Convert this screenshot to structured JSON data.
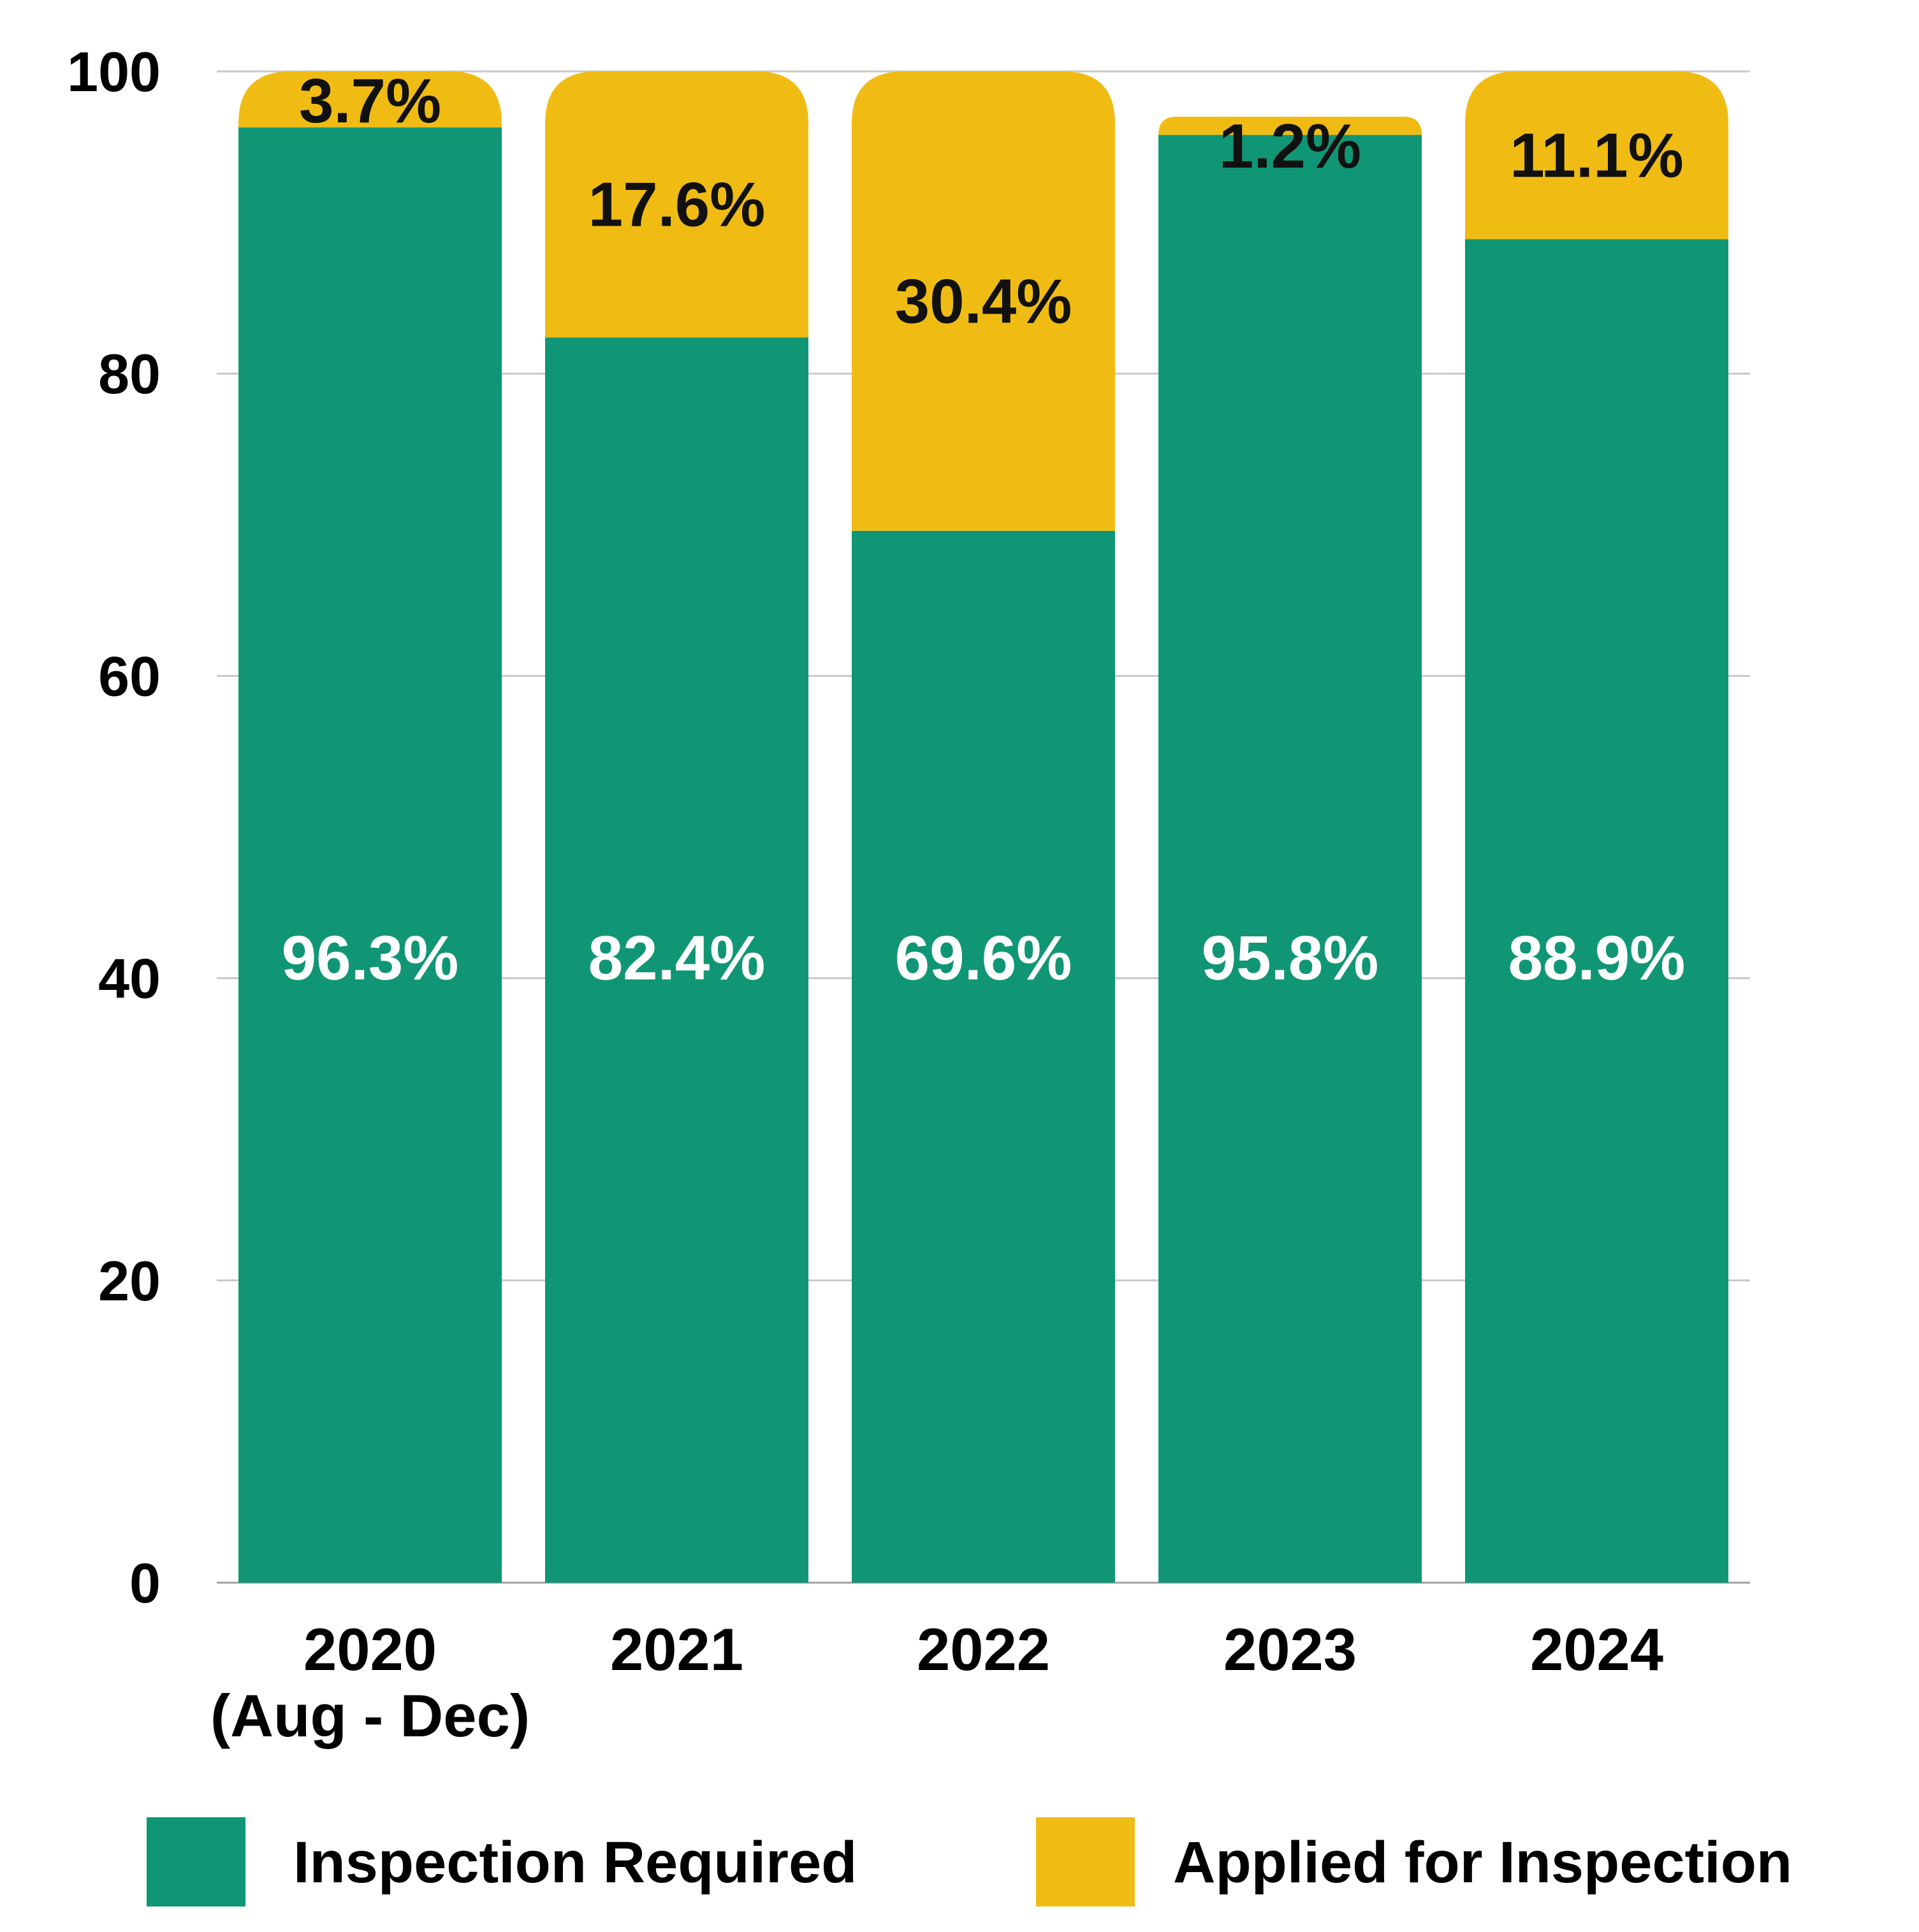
{
  "chart_data": {
    "type": "bar",
    "stacked": true,
    "title": "",
    "xlabel": "",
    "ylabel": "",
    "ylim": [
      0,
      100
    ],
    "yticks": [
      "0",
      "20",
      "40",
      "60",
      "80",
      "100"
    ],
    "grid": true,
    "categories": [
      [
        "2020",
        "(Aug - Dec)"
      ],
      [
        "2021"
      ],
      [
        "2022"
      ],
      [
        "2023"
      ],
      [
        "2024"
      ]
    ],
    "series": [
      {
        "name": "Inspection Required",
        "color": "#109675",
        "values": [
          96.3,
          82.4,
          69.6,
          95.8,
          88.9
        ],
        "labels": [
          "96.3%",
          "82.4%",
          "69.6%",
          "95.8%",
          "88.9%"
        ]
      },
      {
        "name": "Applied for Inspection",
        "color": "#F0BC14",
        "values": [
          3.7,
          17.6,
          30.4,
          1.2,
          11.1
        ],
        "labels": [
          "3.7%",
          "17.6%",
          "30.4%",
          "1.2%",
          "11.1%"
        ]
      }
    ],
    "legend_position": "bottom"
  }
}
